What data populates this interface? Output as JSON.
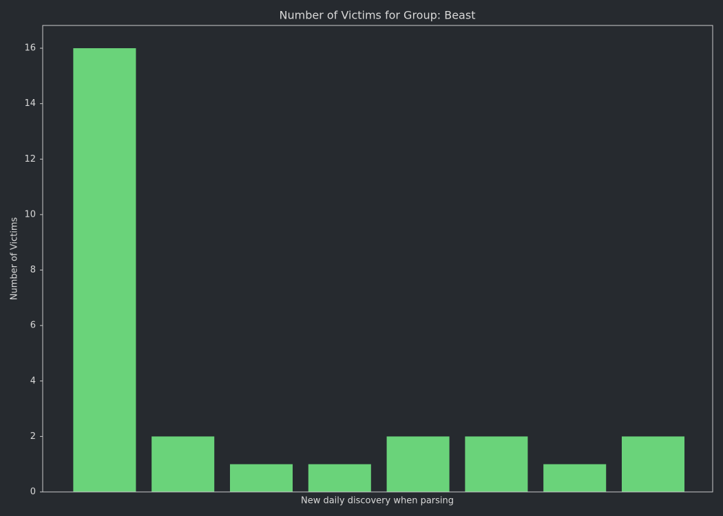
{
  "chart_data": {
    "type": "bar",
    "title": "Number of Victims for Group: Beast",
    "x_label": "New daily discovery when parsing",
    "y_label": "Number of Victims",
    "categories": [
      null,
      null,
      null,
      null,
      null,
      null,
      null,
      null
    ],
    "values": [
      16,
      2,
      1,
      1,
      2,
      2,
      1,
      2
    ],
    "color": "#6ad37a",
    "ylim": [
      0,
      16.82
    ],
    "yticks": [
      0,
      2,
      4,
      6,
      8,
      10,
      12,
      14,
      16
    ],
    "grid": false
  }
}
